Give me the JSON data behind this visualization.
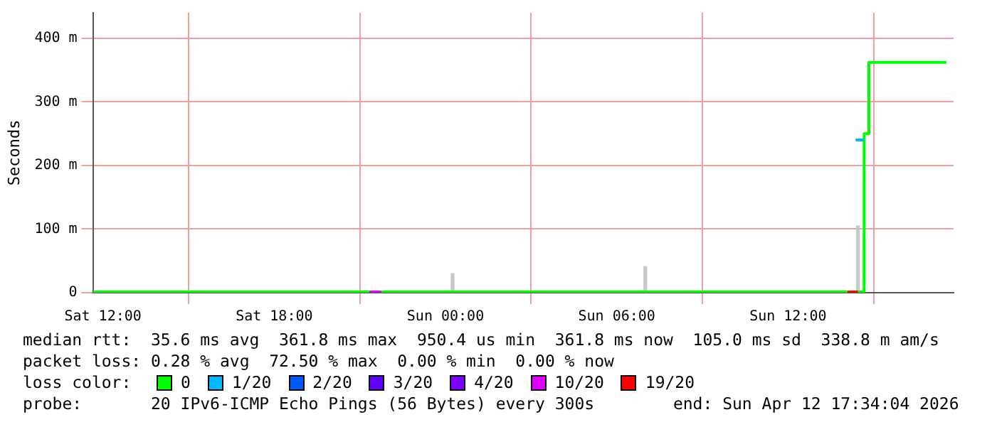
{
  "chart_data": {
    "type": "step",
    "ylabel": "Seconds",
    "xlim": [
      "2026-04-11T11:39",
      "2026-04-12T17:48"
    ],
    "ylim": [
      0,
      440
    ],
    "xticks": [
      {
        "value": "2026-04-11T12:00",
        "label": "Sat 12:00"
      },
      {
        "value": "2026-04-11T18:00",
        "label": "Sat 18:00"
      },
      {
        "value": "2026-04-12T00:00",
        "label": "Sun 00:00"
      },
      {
        "value": "2026-04-12T06:00",
        "label": "Sun 06:00"
      },
      {
        "value": "2026-04-12T12:00",
        "label": "Sun 12:00"
      }
    ],
    "yticks": [
      0,
      {
        "value": 100,
        "label": "100 m"
      },
      {
        "value": 200,
        "label": "200 m"
      },
      {
        "value": 300,
        "label": "300 m"
      },
      {
        "value": 400,
        "label": "400 m"
      }
    ],
    "grid": true,
    "legend": "bottom",
    "legend_title": "loss color:",
    "series": [
      {
        "name": "0",
        "color": "#00ff00",
        "x": [
          "2026-04-11T11:39",
          "2026-04-12T14:27",
          "2026-04-12T14:40",
          "2026-04-12T14:50",
          "2026-04-12T17:33"
        ],
        "values": [
          1,
          1,
          250,
          362,
          362
        ]
      },
      {
        "name": "1/20",
        "color": "#00b8ff",
        "x": [
          "2026-04-12T14:22",
          "2026-04-12T14:40"
        ],
        "values": [
          240,
          240
        ]
      },
      {
        "name": "2/20",
        "color": "#0059ff"
      },
      {
        "name": "3/20",
        "color": "#5e00ff"
      },
      {
        "name": "4/20",
        "color": "#7e00ff"
      },
      {
        "name": "10/20",
        "color": "#dd00ff",
        "x": [
          "2026-04-11T21:20",
          "2026-04-11T21:45"
        ],
        "values": [
          1,
          1
        ]
      },
      {
        "name": "19/20",
        "color": "#ff0000",
        "x": [
          "2026-04-12T14:05",
          "2026-04-12T14:27"
        ],
        "values": [
          1,
          1
        ]
      },
      {
        "type": "bar",
        "color": "#c8c8c8",
        "x": [
          "2026-04-12T00:15",
          "2026-04-12T07:00",
          "2026-04-12T14:27"
        ],
        "values": [
          30,
          41,
          105
        ]
      }
    ],
    "annotations": [
      "median rtt:  35.6 ms avg  361.8 ms max  950.4 us min  361.8 ms now  105.0 ms sd  338.8 m am/s",
      "packet loss: 0.28 % avg  72.50 % max  0.00 % min  0.00 % now",
      "probe:       20 IPv6-ICMP Echo Pings (56 Bytes) every 300s        end: Sun Apr 12 17:34:04 2026"
    ]
  }
}
